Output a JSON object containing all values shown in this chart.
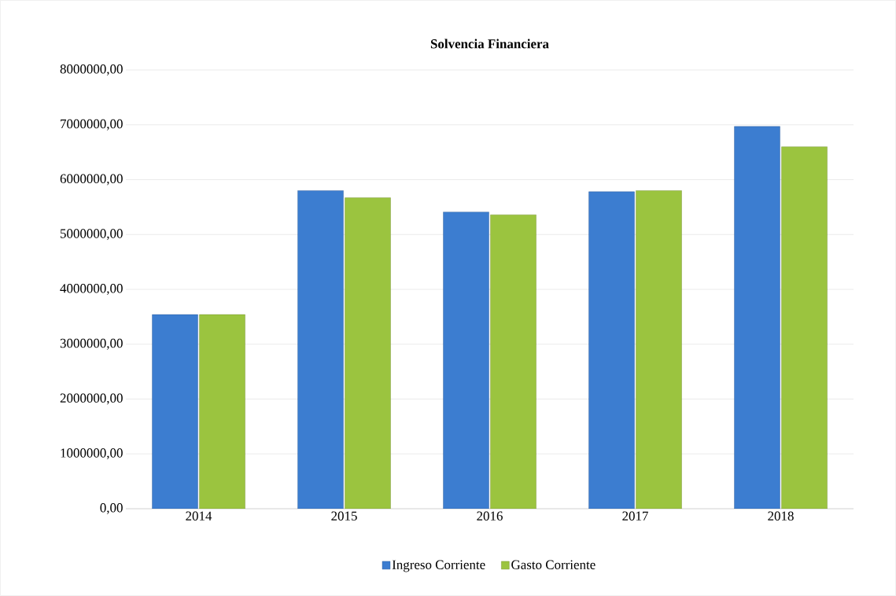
{
  "chart_data": {
    "type": "bar",
    "title": "Solvencia Financiera",
    "categories": [
      "2014",
      "2015",
      "2016",
      "2017",
      "2018"
    ],
    "series": [
      {
        "name": "Ingreso Corriente",
        "color": "#3c7dd0",
        "values": [
          3540000,
          5800000,
          5410000,
          5780000,
          6970000
        ]
      },
      {
        "name": "Gasto Corriente",
        "color": "#9bc43f",
        "values": [
          3540000,
          5670000,
          5360000,
          5800000,
          6600000
        ]
      }
    ],
    "ylim": [
      0,
      8000000
    ],
    "yticks": [
      {
        "value": 0,
        "label": "0,00"
      },
      {
        "value": 1000000,
        "label": "1000000,00"
      },
      {
        "value": 2000000,
        "label": "2000000,00"
      },
      {
        "value": 3000000,
        "label": "3000000,00"
      },
      {
        "value": 4000000,
        "label": "4000000,00"
      },
      {
        "value": 5000000,
        "label": "5000000,00"
      },
      {
        "value": 6000000,
        "label": "6000000,00"
      },
      {
        "value": 7000000,
        "label": "7000000,00"
      },
      {
        "value": 8000000,
        "label": "8000000,00"
      }
    ],
    "grid": "y",
    "legend": "bottom"
  }
}
